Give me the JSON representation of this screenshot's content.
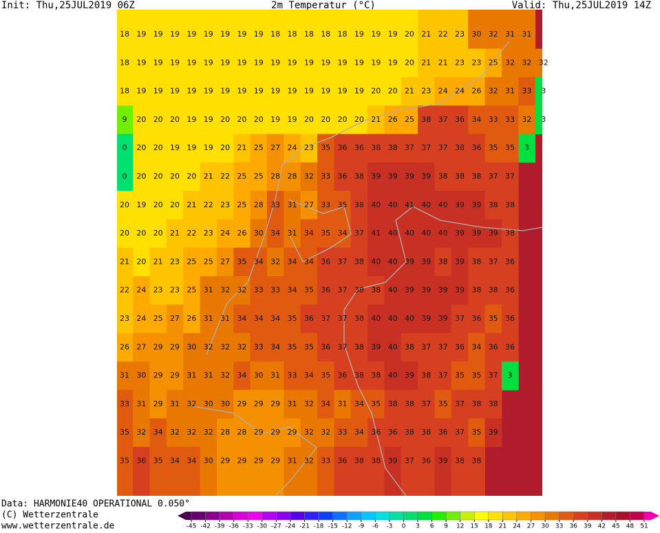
{
  "header": {
    "init": "Init: Thu,25JUL2019 06Z",
    "title": "2m Temperatur (°C)",
    "valid": "Valid: Thu,25JUL2019 14Z"
  },
  "footer": {
    "data": "Data: HARMONIE40 OPERATIONAL 0.050°",
    "copyright": "(C) Wetterzentrale",
    "url": "www.wetterzentrale.de"
  },
  "map": {
    "rows": [
      [
        18,
        19,
        19,
        19,
        19,
        19,
        19,
        19,
        19,
        18,
        18,
        18,
        18,
        18,
        19,
        19,
        19,
        20,
        21,
        22,
        23,
        30,
        32,
        31,
        31
      ],
      [
        18,
        19,
        19,
        19,
        19,
        19,
        19,
        19,
        19,
        19,
        19,
        19,
        19,
        19,
        19,
        19,
        19,
        20,
        21,
        21,
        23,
        23,
        25,
        32,
        32,
        32
      ],
      [
        18,
        19,
        19,
        19,
        19,
        19,
        19,
        19,
        19,
        19,
        19,
        19,
        19,
        19,
        19,
        20,
        20,
        21,
        23,
        24,
        24,
        26,
        32,
        31,
        33,
        3
      ],
      [
        9,
        20,
        20,
        20,
        19,
        19,
        20,
        20,
        20,
        19,
        19,
        20,
        20,
        20,
        20,
        21,
        26,
        25,
        38,
        37,
        36,
        34,
        33,
        33,
        32,
        3
      ],
      [
        0,
        20,
        20,
        19,
        19,
        19,
        20,
        21,
        25,
        27,
        24,
        23,
        35,
        36,
        36,
        38,
        38,
        37,
        37,
        37,
        38,
        36,
        35,
        35,
        3
      ],
      [
        0,
        20,
        20,
        20,
        20,
        21,
        22,
        25,
        25,
        28,
        28,
        32,
        33,
        36,
        38,
        39,
        39,
        39,
        39,
        38,
        38,
        38,
        37,
        37
      ],
      [
        20,
        19,
        20,
        20,
        21,
        22,
        23,
        25,
        28,
        33,
        31,
        27,
        33,
        35,
        38,
        40,
        40,
        41,
        40,
        40,
        39,
        39,
        38,
        38
      ],
      [
        20,
        20,
        20,
        21,
        22,
        23,
        24,
        26,
        30,
        34,
        31,
        34,
        35,
        34,
        37,
        41,
        40,
        40,
        40,
        40,
        39,
        39,
        39,
        38
      ],
      [
        21,
        20,
        21,
        23,
        25,
        25,
        27,
        35,
        34,
        32,
        34,
        34,
        36,
        37,
        38,
        40,
        40,
        39,
        39,
        38,
        39,
        38,
        37,
        36
      ],
      [
        22,
        24,
        23,
        23,
        25,
        31,
        32,
        32,
        33,
        33,
        34,
        35,
        36,
        37,
        38,
        38,
        40,
        39,
        39,
        39,
        39,
        38,
        38,
        36
      ],
      [
        23,
        24,
        25,
        27,
        26,
        31,
        31,
        34,
        34,
        34,
        35,
        36,
        37,
        37,
        38,
        40,
        40,
        40,
        39,
        39,
        37,
        36,
        35,
        36
      ],
      [
        26,
        27,
        29,
        29,
        30,
        32,
        32,
        32,
        33,
        34,
        35,
        35,
        36,
        37,
        38,
        39,
        40,
        38,
        37,
        37,
        36,
        34,
        36,
        36
      ],
      [
        31,
        30,
        29,
        29,
        31,
        31,
        32,
        34,
        30,
        31,
        33,
        34,
        35,
        36,
        38,
        38,
        40,
        39,
        38,
        37,
        35,
        35,
        37,
        3
      ],
      [
        33,
        31,
        29,
        31,
        32,
        30,
        30,
        29,
        29,
        29,
        31,
        32,
        34,
        31,
        34,
        35,
        38,
        38,
        37,
        35,
        37,
        38,
        38
      ],
      [
        35,
        32,
        34,
        32,
        32,
        32,
        28,
        28,
        29,
        29,
        29,
        32,
        32,
        33,
        34,
        36,
        36,
        38,
        38,
        36,
        37,
        35,
        39
      ],
      [
        35,
        36,
        35,
        34,
        34,
        30,
        29,
        29,
        29,
        29,
        31,
        32,
        33,
        36,
        38,
        38,
        39,
        37,
        36,
        39,
        38,
        38
      ]
    ]
  },
  "colorbar": {
    "ticks": [
      -45,
      -42,
      -39,
      -36,
      -33,
      -30,
      -27,
      -24,
      -21,
      -18,
      -15,
      -12,
      -9,
      -6,
      -3,
      0,
      3,
      6,
      9,
      12,
      15,
      18,
      21,
      24,
      27,
      30,
      33,
      36,
      39,
      42,
      45,
      48,
      51
    ],
    "under": "#4a004a",
    "over": "#f000b0",
    "colors": [
      "#640070",
      "#8a0090",
      "#b000b0",
      "#d800d8",
      "#f000f0",
      "#b400f0",
      "#8800f0",
      "#5a00e8",
      "#3020ff",
      "#1040ff",
      "#1070ff",
      "#10a0ff",
      "#00c8ff",
      "#00e0e0",
      "#00e0a0",
      "#00e070",
      "#00e040",
      "#20f000",
      "#70f000",
      "#c8f000",
      "#ffff00",
      "#ffe000",
      "#ffc400",
      "#ffaa00",
      "#f59000",
      "#e87800",
      "#e05a10",
      "#d64020",
      "#c83024",
      "#b41c2c",
      "#a8102a",
      "#c0004c"
    ]
  }
}
